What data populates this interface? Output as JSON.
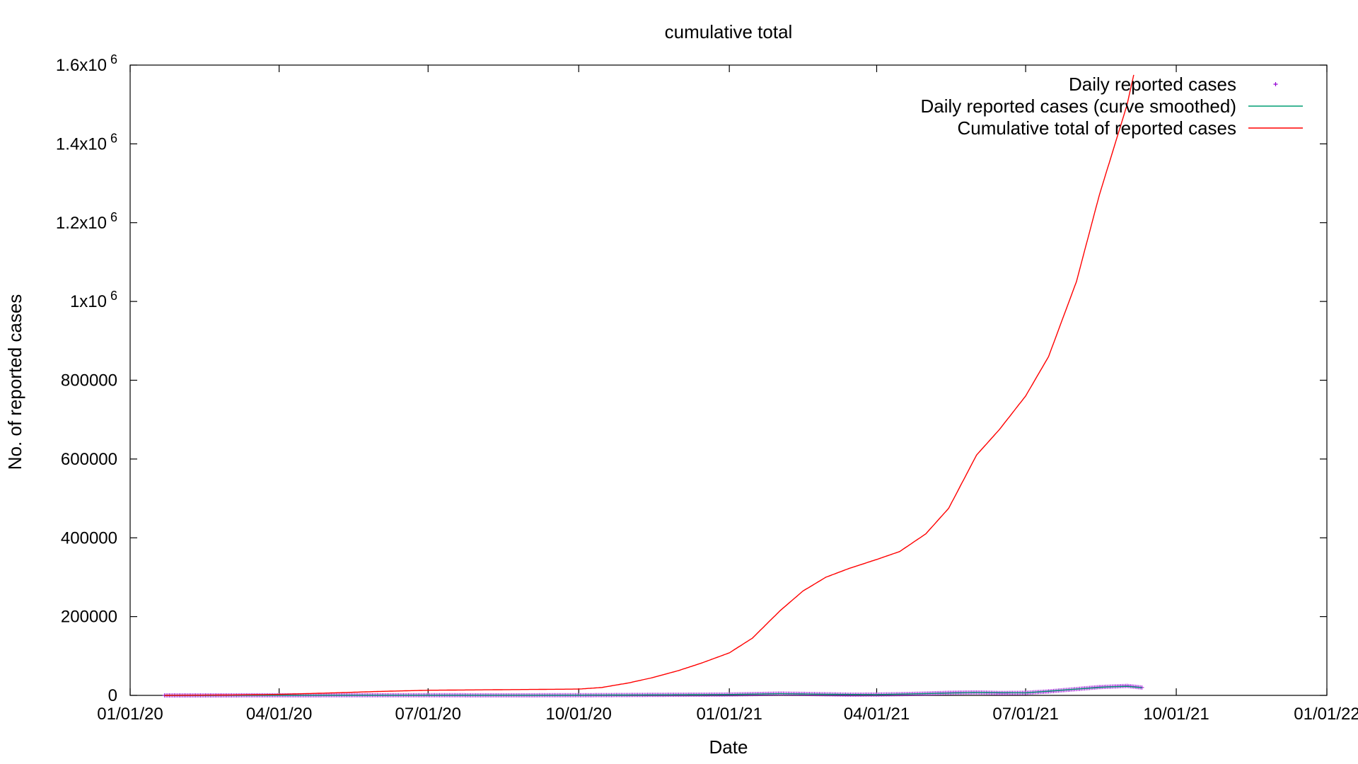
{
  "chart_data": {
    "type": "line",
    "title": "cumulative total",
    "xlabel": "Date",
    "ylabel": "No. of reported cases",
    "x_axis": {
      "kind": "date",
      "range": [
        "2020-01-01",
        "2022-01-01"
      ],
      "ticks": [
        {
          "date": "2020-01-01",
          "label": "01/01/20"
        },
        {
          "date": "2020-04-01",
          "label": "04/01/20"
        },
        {
          "date": "2020-07-01",
          "label": "07/01/20"
        },
        {
          "date": "2020-10-01",
          "label": "10/01/20"
        },
        {
          "date": "2021-01-01",
          "label": "01/01/21"
        },
        {
          "date": "2021-04-01",
          "label": "04/01/21"
        },
        {
          "date": "2021-07-01",
          "label": "07/01/21"
        },
        {
          "date": "2021-10-01",
          "label": "10/01/21"
        },
        {
          "date": "2022-01-01",
          "label": "01/01/22"
        }
      ]
    },
    "y_axis": {
      "range": [
        0,
        1600000
      ],
      "ticks": [
        {
          "value": 0,
          "mant": "0",
          "exp": ""
        },
        {
          "value": 200000,
          "mant": "200000",
          "exp": ""
        },
        {
          "value": 400000,
          "mant": "400000",
          "exp": ""
        },
        {
          "value": 600000,
          "mant": "600000",
          "exp": ""
        },
        {
          "value": 800000,
          "mant": "800000",
          "exp": ""
        },
        {
          "value": 1000000,
          "mant": "1x10",
          "exp": "6"
        },
        {
          "value": 1200000,
          "mant": "1.2x10",
          "exp": "6"
        },
        {
          "value": 1400000,
          "mant": "1.4x10",
          "exp": "6"
        },
        {
          "value": 1600000,
          "mant": "1.6x10",
          "exp": "6"
        }
      ]
    },
    "grid": false,
    "legend_position": "top-right",
    "series": [
      {
        "name": "Daily reported cases",
        "style": "points",
        "marker": "+",
        "color": "#9400d3",
        "points": [
          [
            "2020-01-22",
            0
          ],
          [
            "2020-02-15",
            10
          ],
          [
            "2020-03-15",
            150
          ],
          [
            "2020-04-15",
            300
          ],
          [
            "2020-05-15",
            400
          ],
          [
            "2020-06-15",
            500
          ],
          [
            "2020-07-15",
            350
          ],
          [
            "2020-08-15",
            300
          ],
          [
            "2020-09-15",
            350
          ],
          [
            "2020-10-15",
            600
          ],
          [
            "2020-11-01",
            1000
          ],
          [
            "2020-11-15",
            1300
          ],
          [
            "2020-12-01",
            1600
          ],
          [
            "2020-12-15",
            1800
          ],
          [
            "2021-01-01",
            2200
          ],
          [
            "2021-01-15",
            3200
          ],
          [
            "2021-02-01",
            4500
          ],
          [
            "2021-02-15",
            3800
          ],
          [
            "2021-03-01",
            2800
          ],
          [
            "2021-03-15",
            1800
          ],
          [
            "2021-04-01",
            2000
          ],
          [
            "2021-04-15",
            3000
          ],
          [
            "2021-05-01",
            4500
          ],
          [
            "2021-05-15",
            6500
          ],
          [
            "2021-06-01",
            7500
          ],
          [
            "2021-06-15",
            6000
          ],
          [
            "2021-07-01",
            6500
          ],
          [
            "2021-07-15",
            10000
          ],
          [
            "2021-08-01",
            16000
          ],
          [
            "2021-08-15",
            21000
          ],
          [
            "2021-09-01",
            24000
          ],
          [
            "2021-09-10",
            20000
          ]
        ]
      },
      {
        "name": "Daily reported cases (curve smoothed)",
        "style": "line",
        "color": "#009e73",
        "points": [
          [
            "2020-01-22",
            0
          ],
          [
            "2020-03-15",
            150
          ],
          [
            "2020-05-15",
            400
          ],
          [
            "2020-07-15",
            350
          ],
          [
            "2020-09-15",
            350
          ],
          [
            "2020-11-01",
            1000
          ],
          [
            "2020-12-01",
            1600
          ],
          [
            "2021-01-01",
            2200
          ],
          [
            "2021-02-01",
            4300
          ],
          [
            "2021-03-01",
            2800
          ],
          [
            "2021-04-01",
            2000
          ],
          [
            "2021-05-01",
            4500
          ],
          [
            "2021-06-01",
            7300
          ],
          [
            "2021-07-01",
            6500
          ],
          [
            "2021-08-01",
            16000
          ],
          [
            "2021-08-20",
            21500
          ],
          [
            "2021-09-01",
            23000
          ],
          [
            "2021-09-10",
            19500
          ]
        ]
      },
      {
        "name": "Cumulative total of reported cases",
        "style": "line",
        "color": "#ff0000",
        "points": [
          [
            "2020-01-22",
            0
          ],
          [
            "2020-03-01",
            1000
          ],
          [
            "2020-04-01",
            2500
          ],
          [
            "2020-05-01",
            6000
          ],
          [
            "2020-06-01",
            10000
          ],
          [
            "2020-07-01",
            13000
          ],
          [
            "2020-08-01",
            14000
          ],
          [
            "2020-09-01",
            15000
          ],
          [
            "2020-10-01",
            16000
          ],
          [
            "2020-10-15",
            20000
          ],
          [
            "2020-11-01",
            32000
          ],
          [
            "2020-11-15",
            45000
          ],
          [
            "2020-12-01",
            63000
          ],
          [
            "2020-12-15",
            82000
          ],
          [
            "2021-01-01",
            108000
          ],
          [
            "2021-01-15",
            145000
          ],
          [
            "2021-02-01",
            215000
          ],
          [
            "2021-02-15",
            265000
          ],
          [
            "2021-03-01",
            300000
          ],
          [
            "2021-03-15",
            322000
          ],
          [
            "2021-04-01",
            345000
          ],
          [
            "2021-04-15",
            365000
          ],
          [
            "2021-05-01",
            410000
          ],
          [
            "2021-05-15",
            475000
          ],
          [
            "2021-06-01",
            610000
          ],
          [
            "2021-06-15",
            675000
          ],
          [
            "2021-07-01",
            760000
          ],
          [
            "2021-07-15",
            860000
          ],
          [
            "2021-08-01",
            1050000
          ],
          [
            "2021-08-15",
            1270000
          ],
          [
            "2021-09-01",
            1500000
          ],
          [
            "2021-09-05",
            1575000
          ]
        ]
      }
    ]
  }
}
